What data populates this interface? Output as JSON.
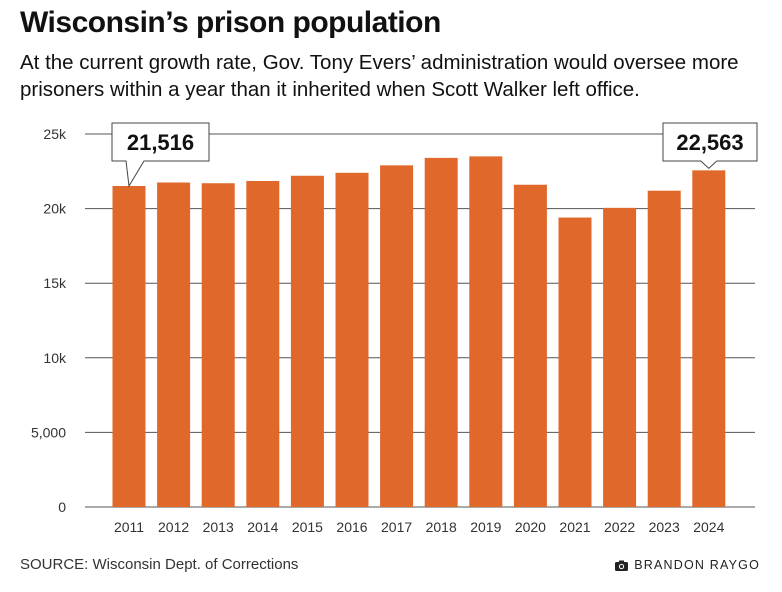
{
  "header": {
    "title": "Wisconsin’s prison population",
    "subtitle": "At the current growth rate, Gov. Tony Evers’ administration would oversee more prisoners within a year than it inherited when Scott Walker left office."
  },
  "footer": {
    "source": "SOURCE: Wisconsin Dept. of Corrections",
    "credit": "BRANDON RAYGO",
    "credit_icon": "camera-icon"
  },
  "colors": {
    "bar": "#e0682a",
    "grid": "#555555"
  },
  "chart_data": {
    "type": "bar",
    "title": "Wisconsin’s prison population",
    "categories": [
      "2011",
      "2012",
      "2013",
      "2014",
      "2015",
      "2016",
      "2017",
      "2018",
      "2019",
      "2020",
      "2021",
      "2022",
      "2023",
      "2024"
    ],
    "values": [
      21516,
      21750,
      21700,
      21850,
      22200,
      22400,
      22900,
      23400,
      23500,
      21600,
      19400,
      20050,
      21200,
      22563
    ],
    "ylim": [
      0,
      25000
    ],
    "yticks": [
      0,
      5000,
      10000,
      15000,
      20000,
      25000
    ],
    "ytick_labels": [
      "0",
      "5,000",
      "10k",
      "15k",
      "20k",
      "25k"
    ],
    "grid": true,
    "annotations": [
      {
        "category": "2011",
        "label": "21,516"
      },
      {
        "category": "2024",
        "label": "22,563"
      }
    ]
  }
}
